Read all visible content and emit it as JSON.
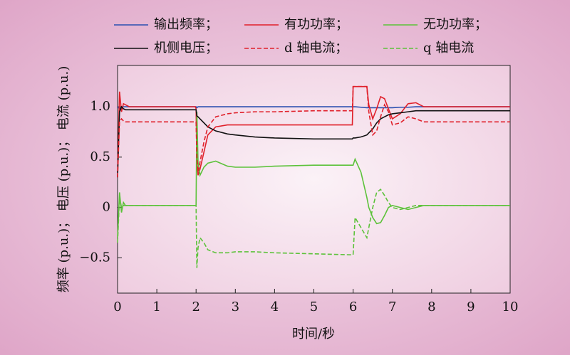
{
  "chart_data": {
    "type": "line",
    "x_label": "时间/秒",
    "y_label": "频率 (p.u.)； 电压 (p.u.)； 电流 (p.u.)",
    "x": [
      0,
      0.05,
      0.1,
      0.15,
      0.2,
      0.3,
      0.5,
      1,
      1.5,
      1.98,
      2.0,
      2.02,
      2.05,
      2.1,
      2.2,
      2.3,
      2.5,
      2.8,
      3,
      3.5,
      4,
      5,
      5.98,
      6.0,
      6.05,
      6.2,
      6.35,
      6.4,
      6.5,
      6.6,
      6.7,
      6.8,
      6.9,
      7.0,
      7.2,
      7.4,
      7.6,
      7.8,
      8,
      9,
      10
    ],
    "series": [
      {
        "name": "输出频率；",
        "color": "#2a4fb0",
        "dashed": false,
        "values": [
          1.0,
          0.98,
          1.0,
          1.0,
          1.0,
          1.0,
          1.0,
          1.0,
          1.0,
          1.0,
          1.0,
          0.99,
          1.0,
          1.0,
          1.0,
          1.0,
          1.0,
          1.0,
          1.0,
          1.0,
          1.0,
          1.0,
          1.0,
          1.0,
          1.0,
          0.995,
          0.99,
          0.99,
          0.99,
          0.99,
          0.99,
          0.99,
          0.99,
          0.99,
          0.995,
          0.995,
          1.0,
          1.0,
          1.0,
          1.0,
          1.0
        ]
      },
      {
        "name": "有功功率；",
        "color": "#e0202a",
        "dashed": false,
        "values": [
          0.35,
          1.15,
          0.95,
          1.03,
          1.02,
          1.0,
          1.0,
          1.0,
          1.0,
          1.0,
          0.98,
          0.45,
          0.32,
          0.38,
          0.55,
          0.72,
          0.8,
          0.82,
          0.82,
          0.82,
          0.82,
          0.82,
          0.82,
          1.2,
          1.2,
          1.2,
          1.2,
          1.02,
          0.88,
          0.98,
          1.1,
          1.08,
          0.98,
          0.88,
          0.93,
          1.03,
          1.04,
          1.0,
          1.0,
          1.0,
          1.0
        ]
      },
      {
        "name": "无功功率；",
        "color": "#5cc23a",
        "dashed": false,
        "values": [
          -0.3,
          0.15,
          -0.05,
          0.05,
          0.02,
          0.02,
          0.02,
          0.02,
          0.02,
          0.02,
          0.02,
          0.95,
          0.45,
          0.32,
          0.4,
          0.44,
          0.46,
          0.41,
          0.4,
          0.4,
          0.41,
          0.42,
          0.42,
          0.42,
          0.48,
          0.35,
          0.1,
          0.0,
          -0.1,
          -0.16,
          -0.15,
          -0.08,
          0.0,
          0.02,
          0.0,
          -0.02,
          0.0,
          0.02,
          0.02,
          0.02,
          0.02
        ]
      },
      {
        "name": "机侧电压；",
        "color": "#111111",
        "dashed": false,
        "values": [
          0.3,
          0.95,
          1.0,
          0.98,
          0.97,
          0.97,
          0.97,
          0.97,
          0.97,
          0.97,
          0.97,
          0.91,
          0.9,
          0.88,
          0.84,
          0.8,
          0.76,
          0.73,
          0.72,
          0.7,
          0.69,
          0.68,
          0.68,
          0.69,
          0.69,
          0.7,
          0.72,
          0.74,
          0.78,
          0.84,
          0.88,
          0.9,
          0.92,
          0.93,
          0.94,
          0.95,
          0.96,
          0.96,
          0.96,
          0.96,
          0.96
        ]
      },
      {
        "name": "d 轴电流；",
        "color": "#e0202a",
        "dashed": true,
        "values": [
          0.3,
          0.85,
          0.88,
          0.86,
          0.85,
          0.85,
          0.85,
          0.85,
          0.85,
          0.85,
          0.85,
          0.5,
          0.35,
          0.45,
          0.65,
          0.8,
          0.9,
          0.93,
          0.94,
          0.95,
          0.95,
          0.96,
          0.96,
          1.2,
          1.2,
          1.2,
          1.2,
          0.95,
          0.72,
          0.76,
          0.9,
          1.02,
          0.95,
          0.82,
          0.84,
          0.9,
          0.88,
          0.85,
          0.85,
          0.85,
          0.85
        ]
      },
      {
        "name": "q 轴电流",
        "color": "#5cc23a",
        "dashed": true,
        "values": [
          -0.35,
          0.1,
          0.0,
          0.02,
          0.02,
          0.02,
          0.02,
          0.02,
          0.02,
          0.02,
          0.02,
          -0.6,
          -0.4,
          -0.3,
          -0.35,
          -0.42,
          -0.45,
          -0.45,
          -0.44,
          -0.44,
          -0.45,
          -0.46,
          -0.47,
          -0.47,
          -0.1,
          -0.2,
          -0.3,
          -0.2,
          0.0,
          0.15,
          0.18,
          0.12,
          0.05,
          0.0,
          -0.02,
          0.0,
          0.02,
          0.02,
          0.02,
          0.02,
          0.02
        ]
      }
    ],
    "xlim": [
      0,
      10
    ],
    "xticks": [
      0,
      1,
      2,
      3,
      4,
      5,
      6,
      7,
      8,
      9,
      10
    ],
    "ylim": [
      -0.85,
      1.41
    ],
    "yticks": [
      {
        "value": -0.5,
        "label": "−0.5"
      },
      0,
      0.5,
      {
        "value": 1,
        "label": "1.0"
      }
    ],
    "legend_position": "top"
  }
}
